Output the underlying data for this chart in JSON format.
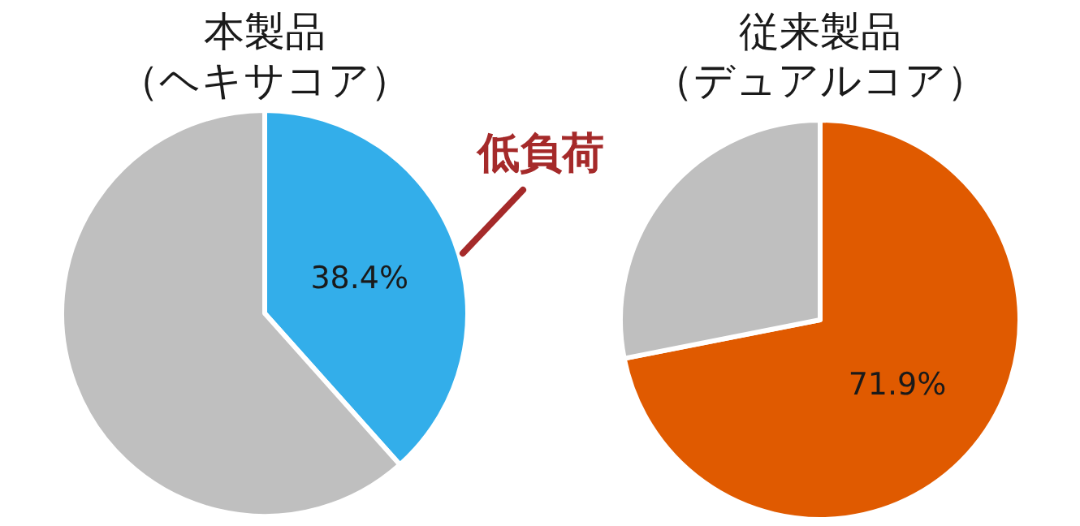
{
  "chart_data": [
    {
      "type": "pie",
      "title": "本製品",
      "subtitle": "（ヘキサコア）",
      "categories": [
        null,
        null
      ],
      "values": [
        38.4,
        61.6
      ],
      "colors": [
        "#33aeea",
        "#bfbfbf"
      ],
      "value_labels": [
        "38.4%",
        null
      ],
      "annotations": [
        "低負荷"
      ]
    },
    {
      "type": "pie",
      "title": "従来製品",
      "subtitle": "（デュアルコア）",
      "categories": [
        null,
        null
      ],
      "values": [
        71.9,
        28.1
      ],
      "colors": [
        "#e05a00",
        "#bfbfbf"
      ],
      "value_labels": [
        "71.9%",
        null
      ]
    }
  ]
}
